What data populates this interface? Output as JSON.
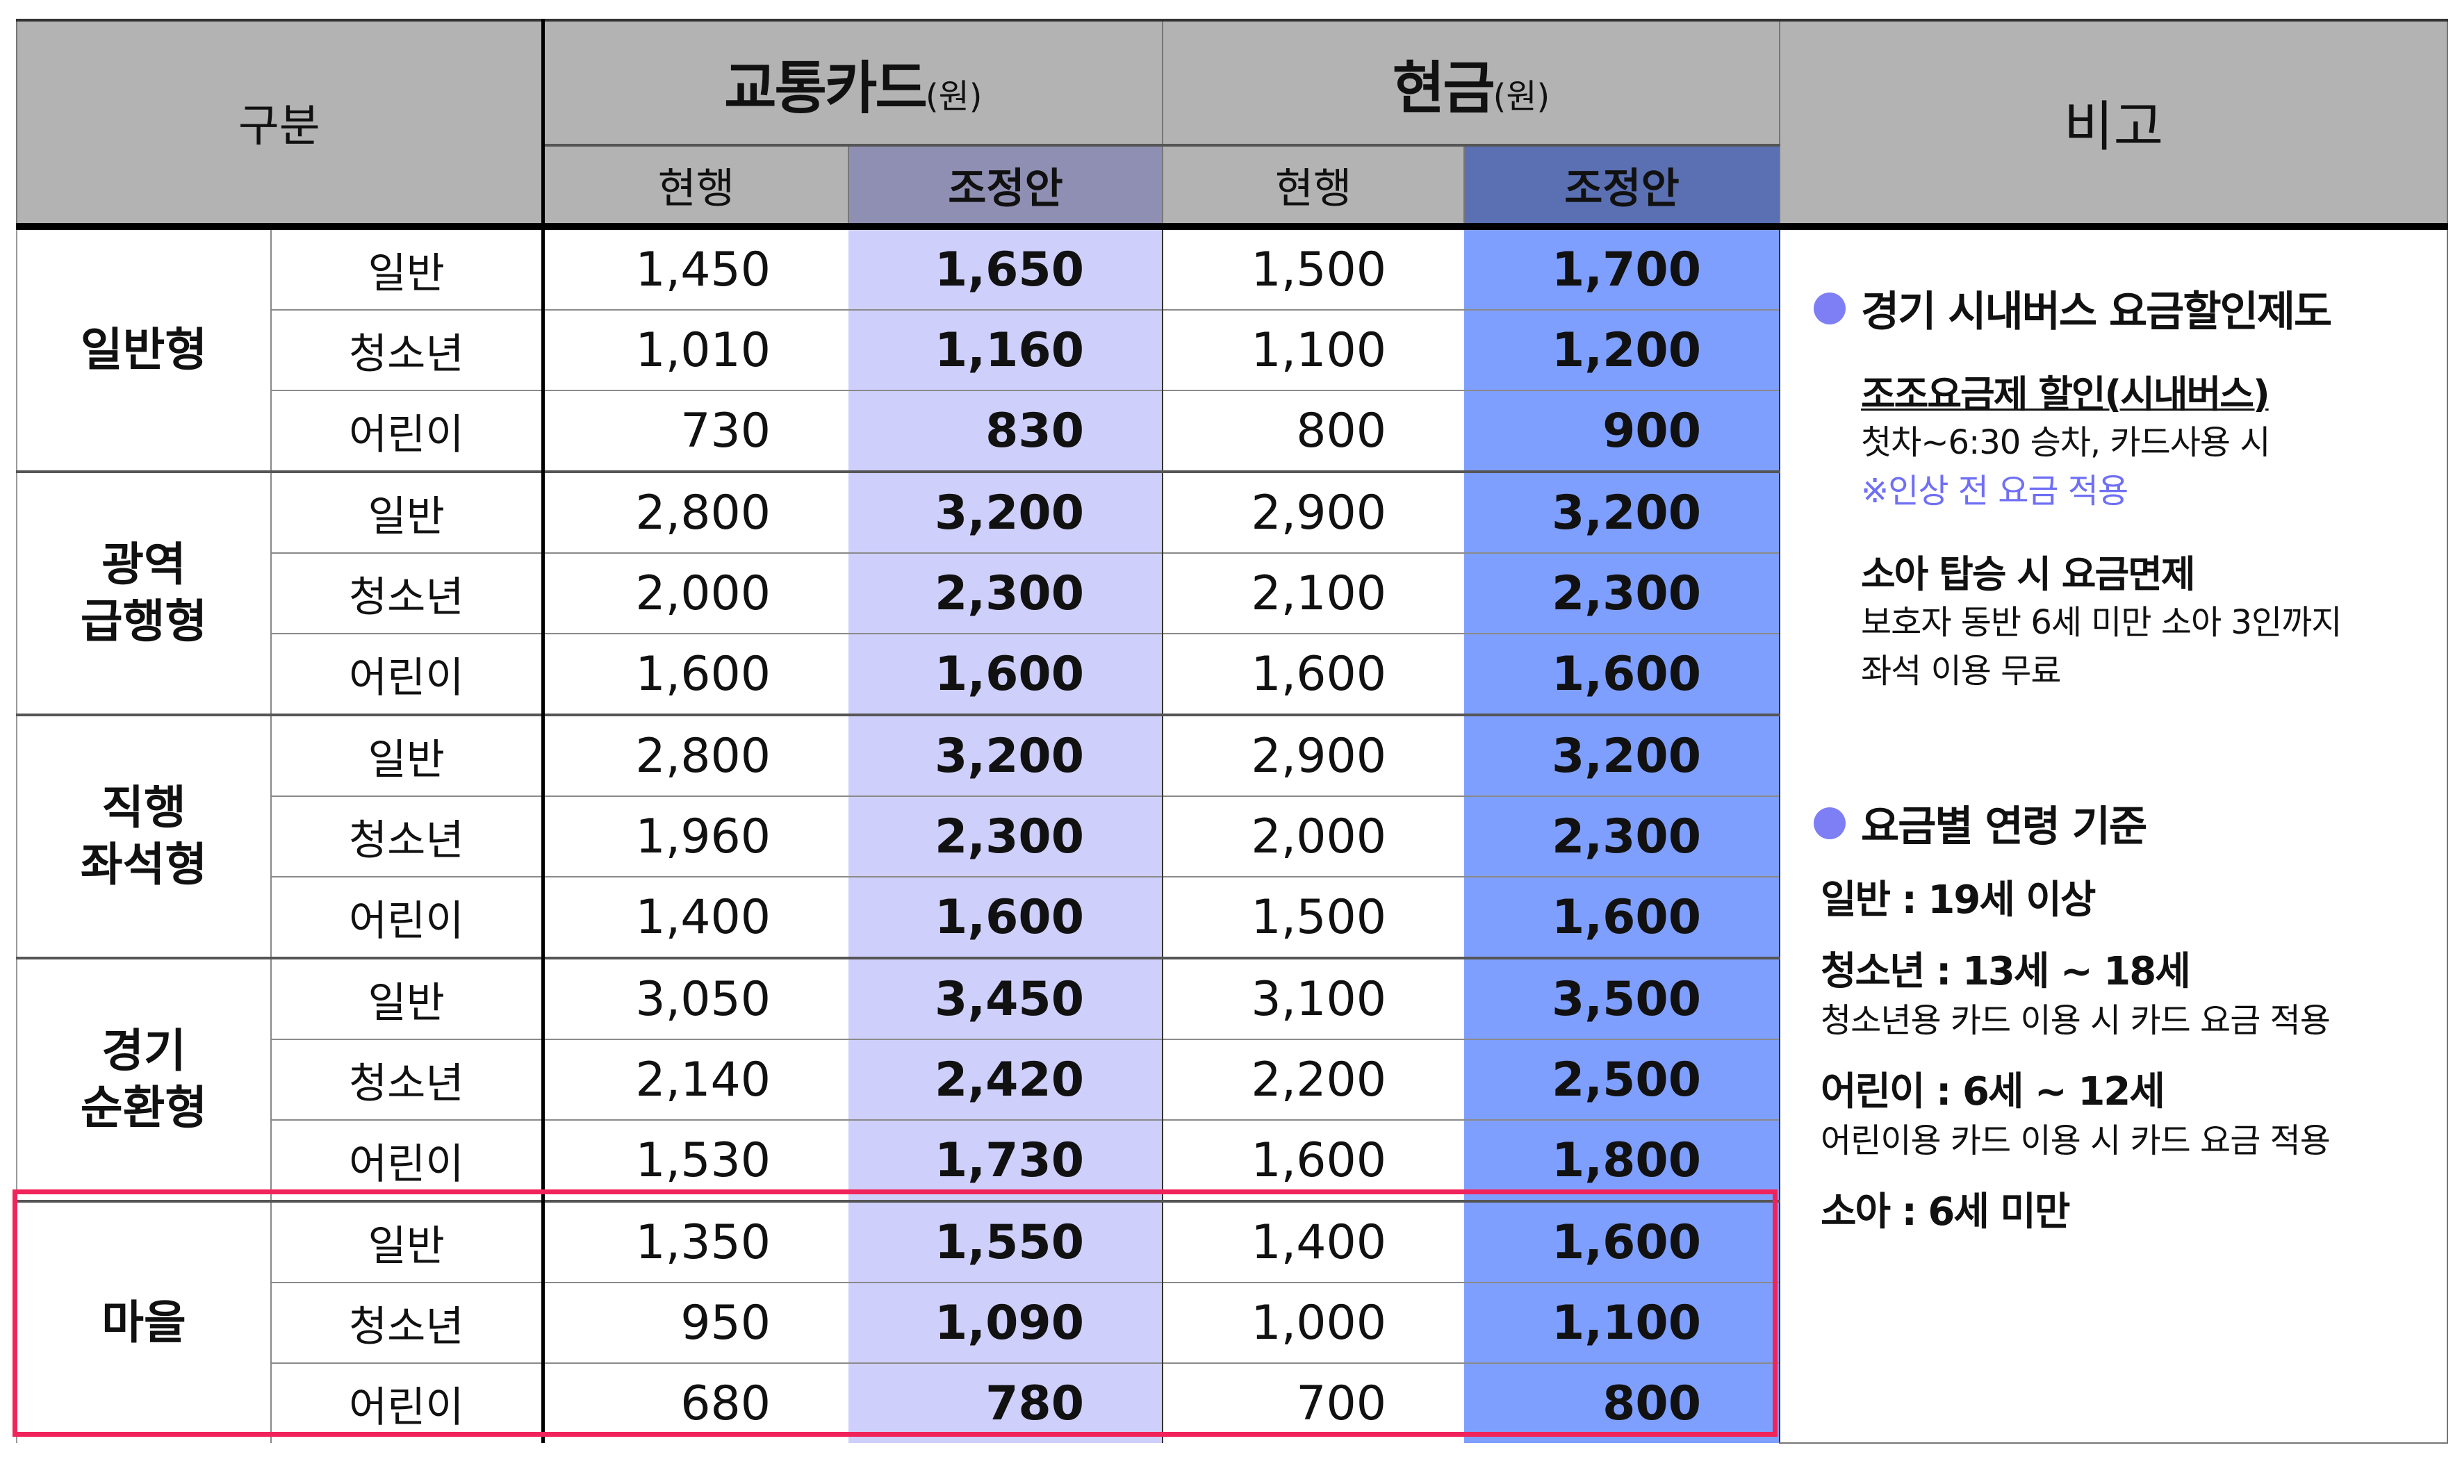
{
  "header": {
    "category": "구분",
    "card": "교통카드",
    "card_unit": "(원)",
    "cash": "현금",
    "cash_unit": "(원)",
    "note": "비고",
    "current": "현행",
    "proposed": "조정안"
  },
  "groups": [
    {
      "name": "일반형",
      "rows": [
        {
          "label": "일반",
          "card_current": "1,450",
          "card_proposed": "1,650",
          "cash_current": "1,500",
          "cash_proposed": "1,700"
        },
        {
          "label": "청소년",
          "card_current": "1,010",
          "card_proposed": "1,160",
          "cash_current": "1,100",
          "cash_proposed": "1,200"
        },
        {
          "label": "어린이",
          "card_current": "730",
          "card_proposed": "830",
          "cash_current": "800",
          "cash_proposed": "900"
        }
      ]
    },
    {
      "name": "광역\n급행형",
      "rows": [
        {
          "label": "일반",
          "card_current": "2,800",
          "card_proposed": "3,200",
          "cash_current": "2,900",
          "cash_proposed": "3,200"
        },
        {
          "label": "청소년",
          "card_current": "2,000",
          "card_proposed": "2,300",
          "cash_current": "2,100",
          "cash_proposed": "2,300"
        },
        {
          "label": "어린이",
          "card_current": "1,600",
          "card_proposed": "1,600",
          "cash_current": "1,600",
          "cash_proposed": "1,600"
        }
      ]
    },
    {
      "name": "직행\n좌석형",
      "rows": [
        {
          "label": "일반",
          "card_current": "2,800",
          "card_proposed": "3,200",
          "cash_current": "2,900",
          "cash_proposed": "3,200"
        },
        {
          "label": "청소년",
          "card_current": "1,960",
          "card_proposed": "2,300",
          "cash_current": "2,000",
          "cash_proposed": "2,300"
        },
        {
          "label": "어린이",
          "card_current": "1,400",
          "card_proposed": "1,600",
          "cash_current": "1,500",
          "cash_proposed": "1,600"
        }
      ]
    },
    {
      "name": "경기\n순환형",
      "rows": [
        {
          "label": "일반",
          "card_current": "3,050",
          "card_proposed": "3,450",
          "cash_current": "3,100",
          "cash_proposed": "3,500"
        },
        {
          "label": "청소년",
          "card_current": "2,140",
          "card_proposed": "2,420",
          "cash_current": "2,200",
          "cash_proposed": "2,500"
        },
        {
          "label": "어린이",
          "card_current": "1,530",
          "card_proposed": "1,730",
          "cash_current": "1,600",
          "cash_proposed": "1,800"
        }
      ]
    },
    {
      "name": "마을",
      "highlighted": true,
      "rows": [
        {
          "label": "일반",
          "card_current": "1,350",
          "card_proposed": "1,550",
          "cash_current": "1,400",
          "cash_proposed": "1,600"
        },
        {
          "label": "청소년",
          "card_current": "950",
          "card_proposed": "1,090",
          "cash_current": "1,000",
          "cash_proposed": "1,100"
        },
        {
          "label": "어린이",
          "card_current": "680",
          "card_proposed": "780",
          "cash_current": "700",
          "cash_proposed": "800"
        }
      ]
    }
  ],
  "notes": {
    "discount_title": "경기 시내버스 요금할인제도",
    "early_title": "조조요금제 할인(시내버스)",
    "early_text": "첫차~6:30 승차, 카드사용 시",
    "early_note": "※인상 전 요금 적용",
    "infant_title": "소아 탑승 시 요금면제",
    "infant_text1": "보호자 동반 6세 미만 소아 3인까지",
    "infant_text2": "좌석 이용 무료",
    "age_title": "요금별 연령 기준",
    "ages": [
      {
        "title": "일반 : 19세 이상",
        "text": ""
      },
      {
        "title": "청소년 : 13세 ~ 18세",
        "text": "청소년용 카드 이용 시 카드 요금 적용"
      },
      {
        "title": "어린이 : 6세 ~ 12세",
        "text": "어린이용 카드 이용 시 카드 요금 적용"
      },
      {
        "title": "소아 : 6세 미만",
        "text": ""
      }
    ]
  },
  "colors": {
    "header_gray": "#b3b3b3",
    "card_proposed_header": "#8f8fb3",
    "cash_proposed_header": "#5a70b3",
    "card_proposed_bg": "#cfcffc",
    "cash_proposed_bg": "#7f9fff",
    "bullet": "#7f7ff5",
    "highlight_border": "#f0245a"
  }
}
